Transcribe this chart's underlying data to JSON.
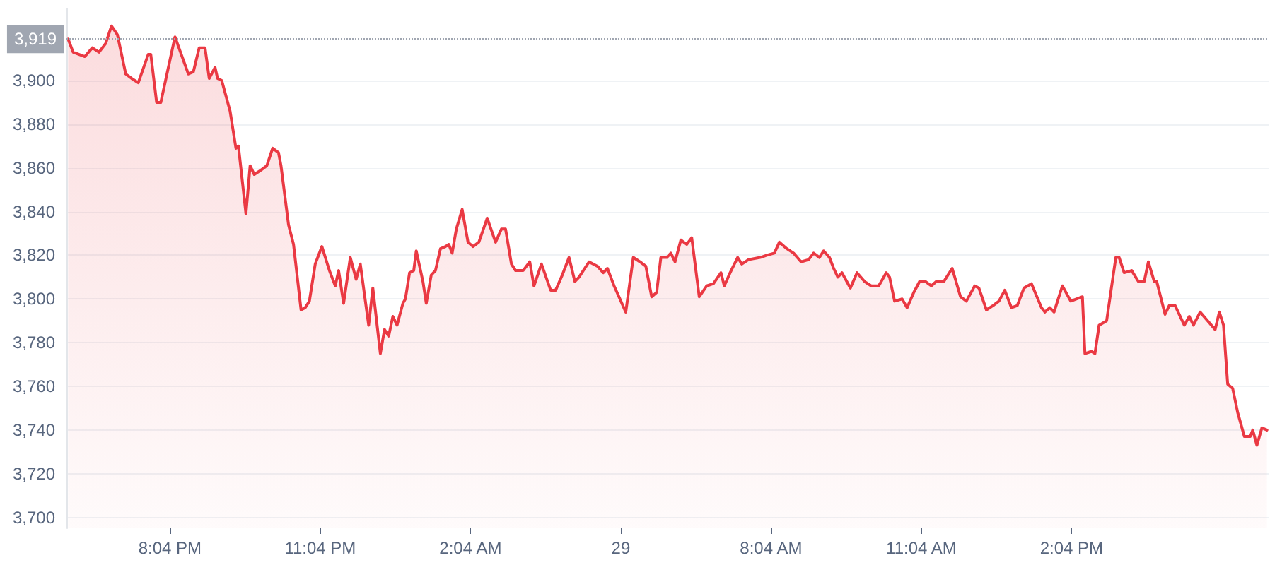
{
  "chart_data": {
    "type": "area",
    "color": "#ea3943",
    "xlim": [
      "--01-28T18:00",
      "--01-29T18:00"
    ],
    "xticks": [
      {
        "value": "--01-28T20:04",
        "label": "8:04 PM"
      },
      {
        "value": "--01-28T23:04",
        "label": "11:04 PM"
      },
      {
        "value": "--01-29T02:04",
        "label": "2:04 AM"
      },
      {
        "value": "--01-29T05:04",
        "label": "29"
      },
      {
        "value": "--01-29T08:04",
        "label": "8:04 AM"
      },
      {
        "value": "--01-29T11:04",
        "label": "11:04 AM"
      },
      {
        "value": "--01-29T14:04",
        "label": "2:04 PM"
      }
    ],
    "ylim": [
      3695,
      3933
    ],
    "yticks": [
      {
        "value": 3700,
        "label": "3,700"
      },
      {
        "value": 3720,
        "label": "3,720"
      },
      {
        "value": 3740,
        "label": "3,740"
      },
      {
        "value": 3760,
        "label": "3,760"
      },
      {
        "value": 3780,
        "label": "3,780"
      },
      {
        "value": 3800,
        "label": "3,800"
      },
      {
        "value": 3820,
        "label": "3,820"
      },
      {
        "value": 3840,
        "label": "3,840"
      },
      {
        "value": 3860,
        "label": "3,860"
      },
      {
        "value": 3880,
        "label": "3,880"
      },
      {
        "value": 3900,
        "label": "3,900"
      }
    ],
    "grid": "y",
    "marker": "none",
    "line_style": "solid",
    "ref_lines": [
      {
        "axis": "y",
        "value": 3919,
        "label": "3,919",
        "color": "#a0a6b1",
        "line_style": "dotted"
      }
    ],
    "x": [
      "--01-28T18:02",
      "--01-28T18:08",
      "--01-28T18:22",
      "--01-28T18:31",
      "--01-28T18:39",
      "--01-28T18:47",
      "--01-28T18:54",
      "--01-28T19:01",
      "--01-28T19:11",
      "--01-28T19:18",
      "--01-28T19:26",
      "--01-28T19:38",
      "--01-28T19:41",
      "--01-28T19:48",
      "--01-28T19:53",
      "--01-28T20:10",
      "--01-28T20:26",
      "--01-28T20:32",
      "--01-28T20:39",
      "--01-28T20:46",
      "--01-28T20:51",
      "--01-28T20:58",
      "--01-28T21:01",
      "--01-28T21:06",
      "--01-28T21:16",
      "--01-28T21:23",
      "--01-28T21:26",
      "--01-28T21:35",
      "--01-28T21:40",
      "--01-28T21:45",
      "--01-28T21:53",
      "--01-28T22:00",
      "--01-28T22:07",
      "--01-28T22:14",
      "--01-28T22:17",
      "--01-28T22:26",
      "--01-28T22:32",
      "--01-28T22:41",
      "--01-28T22:46",
      "--01-28T22:51",
      "--01-28T22:58",
      "--01-28T23:06",
      "--01-28T23:15",
      "--01-28T23:22",
      "--01-28T23:26",
      "--01-28T23:32",
      "--01-28T23:40",
      "--01-28T23:47",
      "--01-28T23:52",
      "--01-29T00:02",
      "--01-29T00:07",
      "--01-29T00:16",
      "--01-29T00:21",
      "--01-29T00:26",
      "--01-29T00:31",
      "--01-29T00:36",
      "--01-29T00:43",
      "--01-29T00:46",
      "--01-29T00:51",
      "--01-29T00:56",
      "--01-29T00:59",
      "--01-29T01:07",
      "--01-29T01:11",
      "--01-29T01:17",
      "--01-29T01:22",
      "--01-29T01:28",
      "--01-29T01:34",
      "--01-29T01:38",
      "--01-29T01:42",
      "--01-29T01:47",
      "--01-29T01:54",
      "--01-29T02:01",
      "--01-29T02:07",
      "--01-29T02:14",
      "--01-29T02:24",
      "--01-29T02:34",
      "--01-29T02:41",
      "--01-29T02:46",
      "--01-29T02:53",
      "--01-29T02:58",
      "--01-29T03:07",
      "--01-29T03:15",
      "--01-29T03:20",
      "--01-29T03:29",
      "--01-29T03:40",
      "--01-29T03:46",
      "--01-29T03:54",
      "--01-29T04:02",
      "--01-29T04:09",
      "--01-29T04:14",
      "--01-29T04:26",
      "--01-29T04:36",
      "--01-29T04:43",
      "--01-29T04:48",
      "--01-29T04:56",
      "--01-29T05:10",
      "--01-29T05:19",
      "--01-29T05:27",
      "--01-29T05:34",
      "--01-29T05:41",
      "--01-29T05:47",
      "--01-29T05:52",
      "--01-29T05:59",
      "--01-29T06:04",
      "--01-29T06:09",
      "--01-29T06:16",
      "--01-29T06:23",
      "--01-29T06:29",
      "--01-29T06:38",
      "--01-29T06:47",
      "--01-29T06:55",
      "--01-29T07:04",
      "--01-29T07:08",
      "--01-29T07:15",
      "--01-29T07:24",
      "--01-29T07:29",
      "--01-29T07:37",
      "--01-29T07:51",
      "--01-29T07:59",
      "--01-29T08:08",
      "--01-29T08:14",
      "--01-29T08:23",
      "--01-29T08:31",
      "--01-29T08:40",
      "--01-29T08:49",
      "--01-29T08:55",
      "--01-29T09:02",
      "--01-29T09:07",
      "--01-29T09:14",
      "--01-29T09:19",
      "--01-29T09:24",
      "--01-29T09:29",
      "--01-29T09:39",
      "--01-29T09:47",
      "--01-29T09:56",
      "--01-29T10:04",
      "--01-29T10:13",
      "--01-29T10:22",
      "--01-29T10:26",
      "--01-29T10:32",
      "--01-29T10:41",
      "--01-29T10:47",
      "--01-29T10:55",
      "--01-29T11:02",
      "--01-29T11:09",
      "--01-29T11:16",
      "--01-29T11:22",
      "--01-29T11:31",
      "--01-29T11:41",
      "--01-29T11:51",
      "--01-29T11:58",
      "--01-29T12:08",
      "--01-29T12:13",
      "--01-29T12:22",
      "--01-29T12:30",
      "--01-29T12:37",
      "--01-29T12:44",
      "--01-29T12:52",
      "--01-29T12:59",
      "--01-29T13:07",
      "--01-29T13:16",
      "--01-29T13:28",
      "--01-29T13:32",
      "--01-29T13:38",
      "--01-29T13:43",
      "--01-29T13:53",
      "--01-29T14:03",
      "--01-29T14:17",
      "--01-29T14:20",
      "--01-29T14:28",
      "--01-29T14:32",
      "--01-29T14:37",
      "--01-29T14:46",
      "--01-29T14:57",
      "--01-29T15:01",
      "--01-29T15:07",
      "--01-29T15:16",
      "--01-29T15:24",
      "--01-29T15:31",
      "--01-29T15:36",
      "--01-29T15:43",
      "--01-29T15:46",
      "--01-29T15:56",
      "--01-29T16:01",
      "--01-29T16:08",
      "--01-29T16:19",
      "--01-29T16:25",
      "--01-29T16:30",
      "--01-29T16:38",
      "--01-29T16:47",
      "--01-29T16:56",
      "--01-29T17:01",
      "--01-29T17:06",
      "--01-29T17:11",
      "--01-29T17:17",
      "--01-29T17:23",
      "--01-29T17:31",
      "--01-29T17:38",
      "--01-29T17:41",
      "--01-29T17:46",
      "--01-29T17:52",
      "--01-29T17:58"
    ],
    "values": [
      3919,
      3913,
      3911,
      3915,
      3913,
      3917,
      3925,
      3921,
      3903,
      3901,
      3899,
      3912,
      3912,
      3890,
      3890,
      3920,
      3903,
      3904,
      3915,
      3915,
      3901,
      3906,
      3901,
      3900,
      3886,
      3869,
      3870,
      3839,
      3861,
      3857,
      3859,
      3861,
      3869,
      3867,
      3861,
      3834,
      3825,
      3795,
      3796,
      3799,
      3816,
      3824,
      3813,
      3806,
      3813,
      3798,
      3819,
      3809,
      3816,
      3788,
      3805,
      3775,
      3786,
      3783,
      3792,
      3788,
      3798,
      3800,
      3812,
      3813,
      3822,
      3808,
      3798,
      3811,
      3813,
      3823,
      3824,
      3825,
      3821,
      3832,
      3841,
      3826,
      3824,
      3826,
      3837,
      3826,
      3832,
      3832,
      3816,
      3813,
      3813,
      3817,
      3806,
      3816,
      3804,
      3804,
      3811,
      3819,
      3808,
      3810,
      3817,
      3815,
      3812,
      3814,
      3806,
      3794,
      3819,
      3817,
      3815,
      3801,
      3803,
      3819,
      3819,
      3821,
      3817,
      3827,
      3825,
      3828,
      3801,
      3806,
      3807,
      3812,
      3806,
      3812,
      3819,
      3816,
      3818,
      3819,
      3820,
      3821,
      3826,
      3823,
      3821,
      3817,
      3818,
      3821,
      3819,
      3822,
      3819,
      3814,
      3810,
      3812,
      3805,
      3812,
      3808,
      3806,
      3806,
      3812,
      3810,
      3799,
      3800,
      3796,
      3803,
      3808,
      3808,
      3806,
      3808,
      3808,
      3814,
      3801,
      3799,
      3806,
      3805,
      3795,
      3797,
      3799,
      3804,
      3796,
      3797,
      3805,
      3807,
      3796,
      3794,
      3796,
      3794,
      3806,
      3799,
      3801,
      3775,
      3776,
      3775,
      3788,
      3790,
      3819,
      3819,
      3812,
      3813,
      3808,
      3808,
      3817,
      3808,
      3808,
      3793,
      3797,
      3797,
      3788,
      3792,
      3788,
      3794,
      3790,
      3786,
      3794,
      3788,
      3761,
      3759,
      3748,
      3737,
      3737,
      3740,
      3733,
      3741,
      3740
    ]
  }
}
